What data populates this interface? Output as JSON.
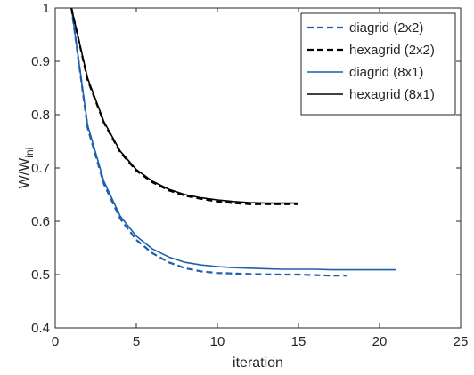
{
  "chart_data": {
    "type": "line",
    "title": "",
    "xlabel": "iteration",
    "ylabel": "W/W",
    "ylabel_subscript": "ini",
    "xlim": [
      0,
      25
    ],
    "ylim": [
      0.4,
      1
    ],
    "xticks": [
      0,
      5,
      10,
      15,
      20,
      25
    ],
    "yticks": [
      0.4,
      0.5,
      0.6,
      0.7,
      0.8,
      0.9,
      1
    ],
    "xtick_labels": [
      "0",
      "5",
      "10",
      "15",
      "20",
      "25"
    ],
    "ytick_labels": [
      "0.4",
      "0.5",
      "0.6",
      "0.7",
      "0.8",
      "0.9",
      "1"
    ],
    "grid": false,
    "legend_position": "top-right",
    "colors": {
      "diagrid": "#1f5fad",
      "hexagrid": "#000000",
      "axes": "#262626"
    },
    "series": [
      {
        "name": "diagrid (2x2)",
        "style": "dashed",
        "color": "#1f5fad",
        "x": [
          1,
          2,
          3,
          4,
          5,
          6,
          7,
          8,
          9,
          10,
          11,
          12,
          13,
          14,
          15,
          16,
          17,
          18
        ],
        "y": [
          1.0,
          0.775,
          0.67,
          0.605,
          0.565,
          0.54,
          0.523,
          0.512,
          0.506,
          0.503,
          0.502,
          0.501,
          0.5005,
          0.5,
          0.5,
          0.499,
          0.498,
          0.498
        ]
      },
      {
        "name": "hexagrid (2x2)",
        "style": "dashed",
        "color": "#000000",
        "x": [
          1,
          2,
          3,
          4,
          5,
          6,
          7,
          8,
          9,
          10,
          11,
          12,
          13,
          14,
          15
        ],
        "y": [
          1.0,
          0.865,
          0.785,
          0.73,
          0.695,
          0.673,
          0.658,
          0.648,
          0.642,
          0.637,
          0.634,
          0.632,
          0.632,
          0.632,
          0.632
        ]
      },
      {
        "name": "diagrid (8x1)",
        "style": "solid",
        "color": "#1f5fad",
        "x": [
          1,
          2,
          3,
          4,
          5,
          6,
          7,
          8,
          9,
          10,
          11,
          12,
          13,
          14,
          15,
          16,
          17,
          18,
          19,
          20,
          21
        ],
        "y": [
          1.0,
          0.78,
          0.675,
          0.61,
          0.572,
          0.548,
          0.533,
          0.523,
          0.518,
          0.515,
          0.513,
          0.512,
          0.511,
          0.51,
          0.51,
          0.51,
          0.509,
          0.509,
          0.509,
          0.509,
          0.509
        ]
      },
      {
        "name": "hexagrid (8x1)",
        "style": "solid",
        "color": "#000000",
        "x": [
          1,
          2,
          3,
          4,
          5,
          6,
          7,
          8,
          9,
          10,
          11,
          12,
          13,
          14,
          15
        ],
        "y": [
          1.0,
          0.868,
          0.787,
          0.732,
          0.697,
          0.675,
          0.66,
          0.65,
          0.644,
          0.64,
          0.637,
          0.635,
          0.634,
          0.634,
          0.634
        ]
      }
    ]
  }
}
